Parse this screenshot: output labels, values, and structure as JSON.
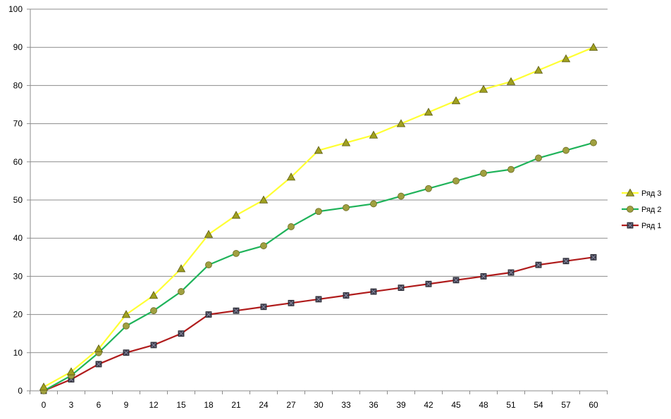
{
  "chart_data": {
    "type": "line",
    "x": [
      0,
      3,
      6,
      9,
      12,
      15,
      18,
      21,
      24,
      27,
      30,
      33,
      36,
      39,
      42,
      45,
      48,
      51,
      54,
      57,
      60
    ],
    "ylim": [
      0,
      100
    ],
    "yticks": [
      0,
      10,
      20,
      30,
      40,
      50,
      60,
      70,
      80,
      90,
      100
    ],
    "grid": "horizontal",
    "legend_position": "right",
    "series": [
      {
        "name": "Ряд 3",
        "color": "#ffff33",
        "marker": "triangle",
        "marker_color": "#a0a020",
        "values": [
          1,
          5,
          11,
          20,
          25,
          32,
          41,
          46,
          50,
          56,
          63,
          65,
          67,
          70,
          73,
          76,
          79,
          81,
          84,
          87,
          90
        ]
      },
      {
        "name": "Ряд 2",
        "color": "#1fb35a",
        "marker": "circle",
        "marker_color": "#a0a040",
        "values": [
          0,
          4,
          10,
          17,
          21,
          26,
          33,
          36,
          38,
          43,
          47,
          48,
          49,
          51,
          53,
          55,
          57,
          58,
          61,
          63,
          65
        ]
      },
      {
        "name": "Ряд 1",
        "color": "#b01c1c",
        "marker": "square",
        "marker_color": "#404050",
        "values": [
          0,
          3,
          7,
          10,
          12,
          15,
          20,
          21,
          22,
          23,
          24,
          25,
          26,
          27,
          28,
          29,
          30,
          31,
          33,
          34,
          35
        ]
      }
    ]
  }
}
